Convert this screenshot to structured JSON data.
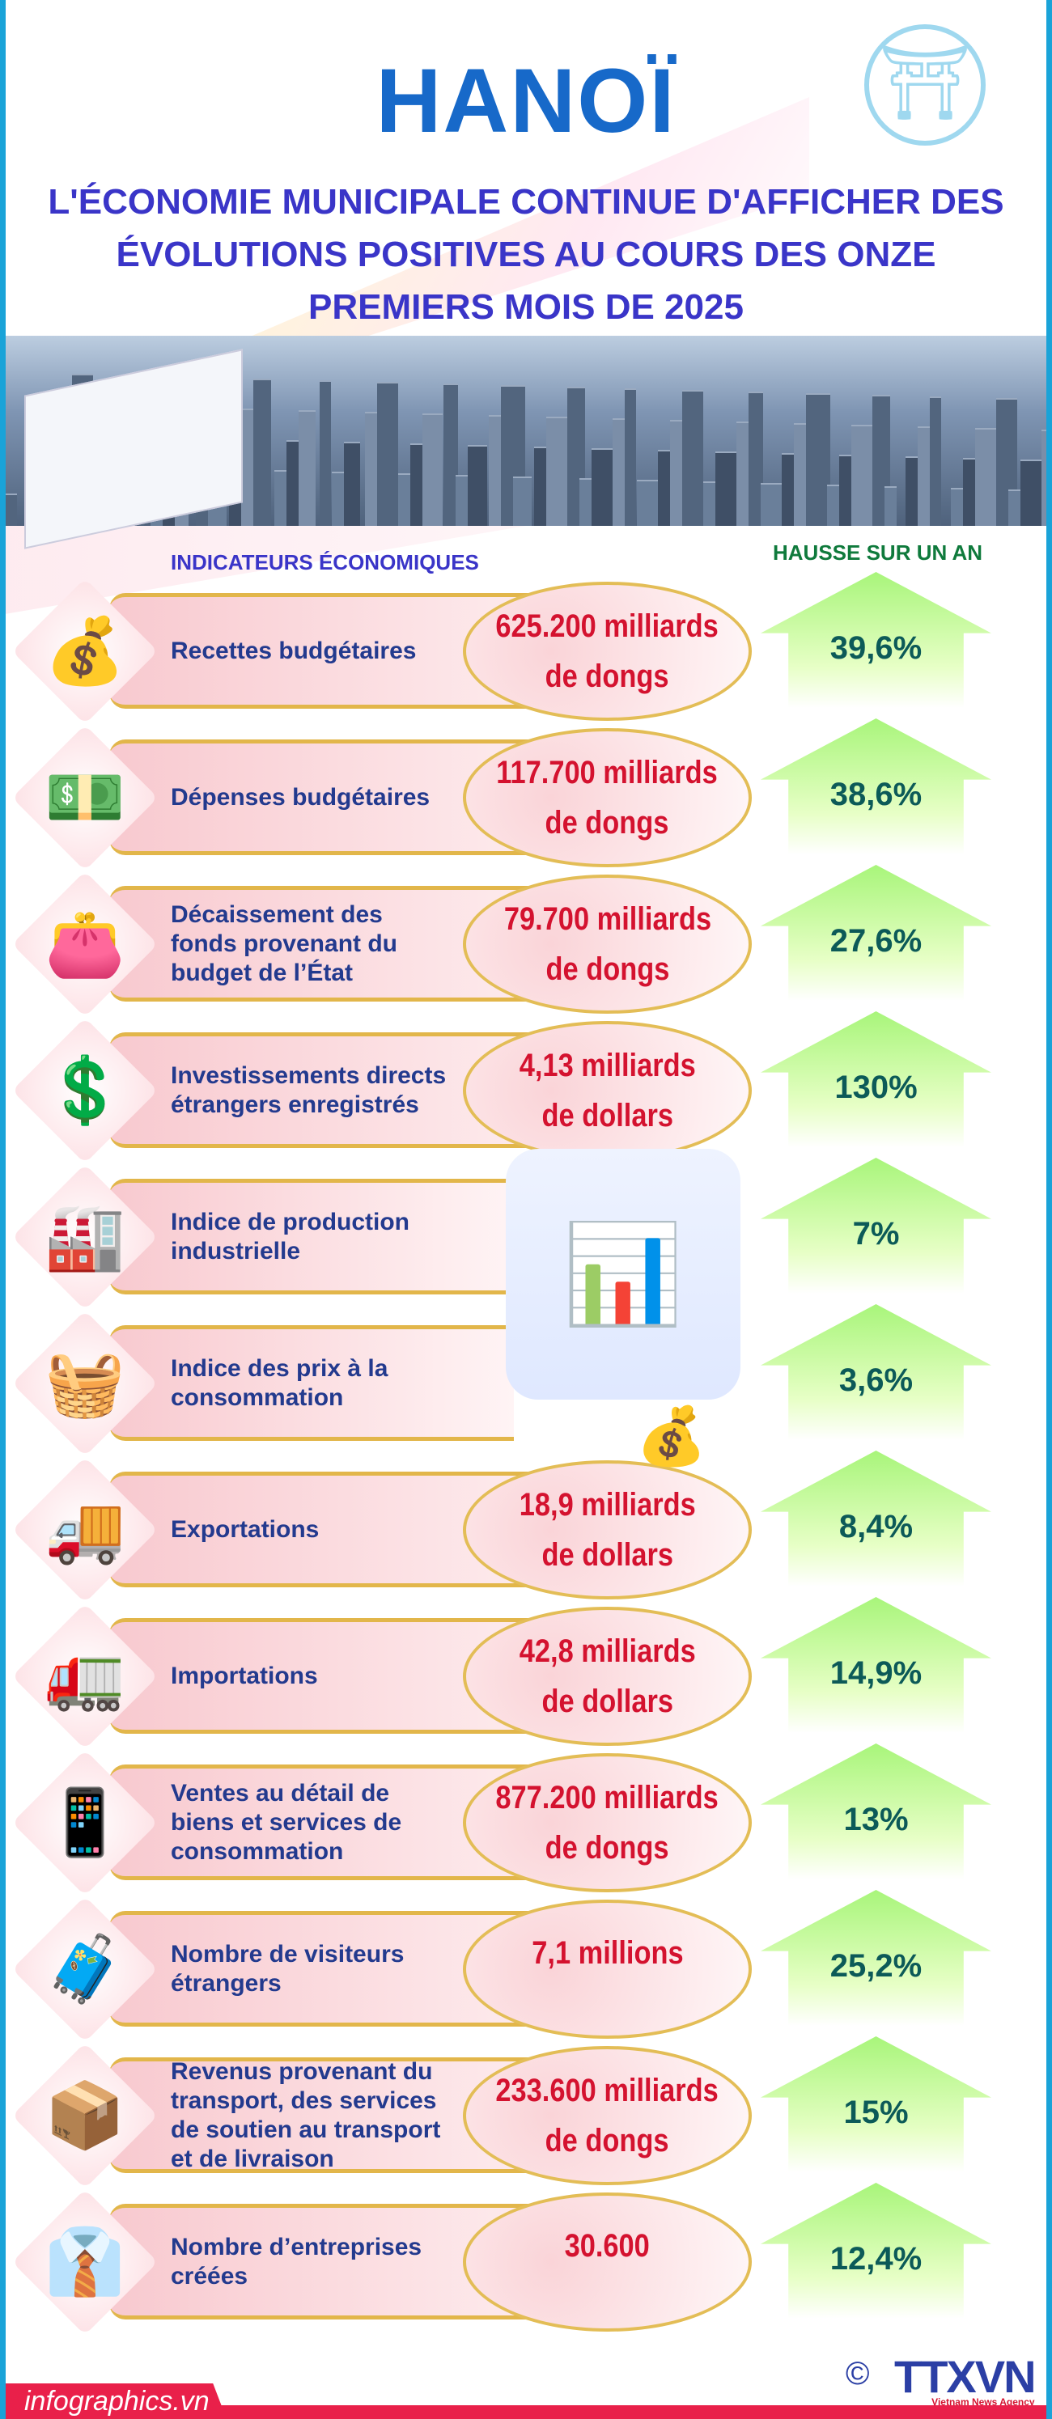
{
  "header": {
    "title": "HANOÏ",
    "subtitle_lines": [
      "L'ÉCONOMIE MUNICIPALE CONTINUE D'AFFICHER DES",
      "ÉVOLUTIONS POSITIVES AU COURS DES ONZE",
      "PREMIERS MOIS DE 2025"
    ]
  },
  "columns": {
    "indicators": "INDICATEURS ÉCONOMIQUES",
    "growth": "HAUSSE SUR UN AN"
  },
  "colors": {
    "value": "#d4122f",
    "label": "#233a8e",
    "percent": "#0c5a58",
    "accent": "#1769c9",
    "footer": "#e9204a"
  },
  "rows": [
    {
      "icon": "money-bag-icon",
      "glyph": "💰",
      "label": "Recettes budgétaires",
      "value": "625.200 milliards\nde dongs",
      "growth": "39,6%"
    },
    {
      "icon": "cash-stacks-icon",
      "glyph": "💵",
      "label": "Dépenses budgétaires",
      "value": "117.700 milliards\nde dongs",
      "growth": "38,6%"
    },
    {
      "icon": "money-bag-icon",
      "glyph": "👛",
      "label": "Décaissement des fonds provenant du budget de l’État",
      "value": "79.700 milliards\nde dongs",
      "growth": "27,6%"
    },
    {
      "icon": "investment-icon",
      "glyph": "💲",
      "label": "Investissements directs étrangers enregistrés",
      "value": "4,13 milliards\nde dollars",
      "growth": "130%"
    },
    {
      "icon": "robot-arm-icon",
      "glyph": "🏭",
      "label": "Indice de production industrielle",
      "value": null,
      "growth": "7%"
    },
    {
      "icon": "shopping-basket-icon",
      "glyph": "🧺",
      "label": "Indice des prix à la consommation",
      "value": null,
      "growth": "3,6%"
    },
    {
      "icon": "export-truck-icon",
      "glyph": "🚚",
      "label": "Exportations",
      "value": "18,9 milliards\nde dollars",
      "growth": "8,4%"
    },
    {
      "icon": "import-truck-icon",
      "glyph": "🚛",
      "label": "Importations",
      "value": "42,8 milliards\nde dollars",
      "growth": "14,9%"
    },
    {
      "icon": "shop-phone-icon",
      "glyph": "📱",
      "label": "Ventes au détail de biens et services de consommation",
      "value": "877.200 milliards\nde dongs",
      "growth": "13%"
    },
    {
      "icon": "traveler-icon",
      "glyph": "🧳",
      "label": "Nombre de visiteurs étrangers",
      "value": "7,1 millions",
      "growth": "25,2%"
    },
    {
      "icon": "delivery-truck-icon",
      "glyph": "📦",
      "label": "Revenus provenant du transport, des services de soutien au transport et de livraison",
      "value": "233.600 milliards\nde dongs",
      "growth": "15%"
    },
    {
      "icon": "businessman-icon",
      "glyph": "👔",
      "label": "Nombre d’entreprises créées",
      "value": "30.600",
      "growth": "12,4%"
    }
  ],
  "footer": {
    "site": "infographics.vn",
    "agency": "TTXVN",
    "agency_sub": "Vietnam News Agency",
    "copyright": "©"
  }
}
